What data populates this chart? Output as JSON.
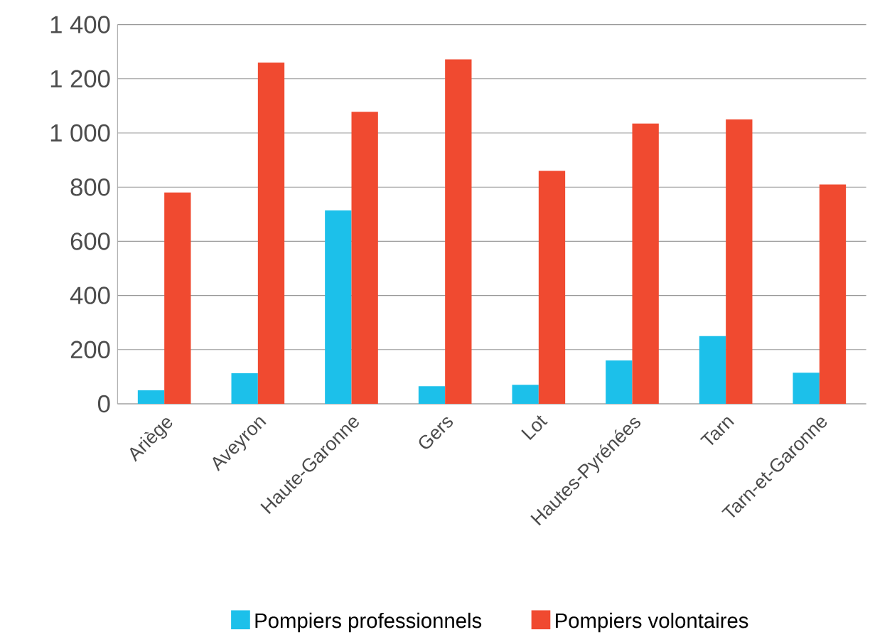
{
  "chart_data": {
    "type": "bar",
    "categories": [
      "Ariège",
      "Aveyron",
      "Haute-Garonne",
      "Gers",
      "Lot",
      "Hautes-Pyrénées",
      "Tarn",
      "Tarn-et-Garonne"
    ],
    "series": [
      {
        "name": "Pompiers professionnels",
        "color": "#1cc0ea",
        "values": [
          50,
          113,
          714,
          65,
          70,
          160,
          250,
          115
        ]
      },
      {
        "name": "Pompiers volontaires",
        "color": "#f04a30",
        "values": [
          780,
          1260,
          1078,
          1272,
          860,
          1035,
          1050,
          810
        ]
      }
    ],
    "ylim": [
      0,
      1400
    ],
    "yticks": [
      {
        "value": 0,
        "label": "0"
      },
      {
        "value": 200,
        "label": "200"
      },
      {
        "value": 400,
        "label": "400"
      },
      {
        "value": 600,
        "label": "600"
      },
      {
        "value": 800,
        "label": "800"
      },
      {
        "value": 1000,
        "label": "1 000"
      },
      {
        "value": 1200,
        "label": "1 200"
      },
      {
        "value": 1400,
        "label": "1 400"
      }
    ],
    "grid": "y",
    "legend": "bottom"
  }
}
